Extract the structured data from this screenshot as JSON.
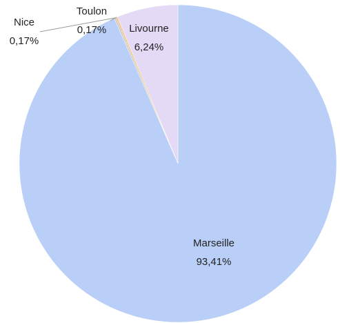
{
  "chart_data": {
    "type": "pie",
    "categories": [
      "Marseille",
      "Nice",
      "Toulon",
      "Livourne"
    ],
    "values": [
      93.41,
      0.17,
      0.17,
      6.24
    ],
    "value_labels": [
      "93,41%",
      "0,17%",
      "0,17%",
      "6,24%"
    ],
    "colors": [
      "#b9cff8",
      "#c8c8c8",
      "#f0c27e",
      "#e4daf5"
    ]
  }
}
